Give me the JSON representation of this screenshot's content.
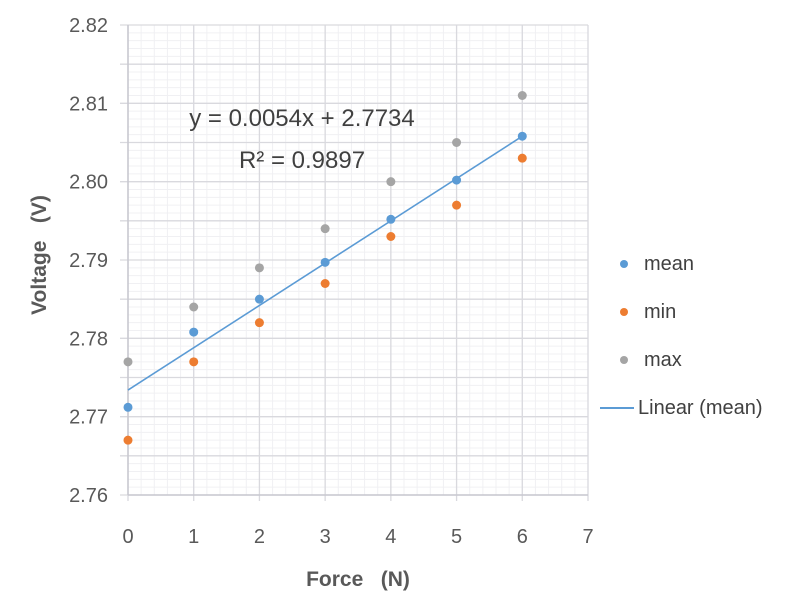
{
  "chart_data": {
    "type": "scatter",
    "title": "",
    "xlabel": "Force   (N)",
    "ylabel": "Voltage   (V)",
    "xlim": [
      0,
      7
    ],
    "ylim": [
      2.76,
      2.82
    ],
    "x_ticks": [
      "0",
      "1",
      "2",
      "3",
      "4",
      "5",
      "6",
      "7"
    ],
    "y_ticks": [
      "2.76",
      "2.77",
      "2.78",
      "2.79",
      "2.80",
      "2.81",
      "2.82"
    ],
    "grid": true,
    "legend_position": "right",
    "x": [
      0,
      1,
      2,
      3,
      4,
      5,
      6
    ],
    "series": [
      {
        "name": "mean",
        "color": "#5B9BD5",
        "values": [
          2.7712,
          2.7808,
          2.785,
          2.7897,
          2.7952,
          2.8002,
          2.8058
        ]
      },
      {
        "name": "min",
        "color": "#ED7D31",
        "values": [
          2.767,
          2.777,
          2.782,
          2.787,
          2.793,
          2.797,
          2.803
        ]
      },
      {
        "name": "max",
        "color": "#A5A5A5",
        "values": [
          2.777,
          2.784,
          2.789,
          2.794,
          2.8,
          2.805,
          2.811
        ]
      }
    ],
    "trendline": {
      "name": "Linear (mean)",
      "color": "#5B9BD5",
      "slope": 0.0054,
      "intercept": 2.7734,
      "x_range": [
        0,
        6
      ],
      "equation_label": "y = 0.0054x + 2.7734",
      "r2_label": "R² = 0.9897"
    }
  },
  "legend": {
    "items": [
      {
        "label": "mean",
        "type": "marker",
        "color": "#5B9BD5"
      },
      {
        "label": "min",
        "type": "marker",
        "color": "#ED7D31"
      },
      {
        "label": "max",
        "type": "marker",
        "color": "#A5A5A5"
      },
      {
        "label": "Linear (mean)",
        "type": "line",
        "color": "#5B9BD5"
      }
    ]
  }
}
